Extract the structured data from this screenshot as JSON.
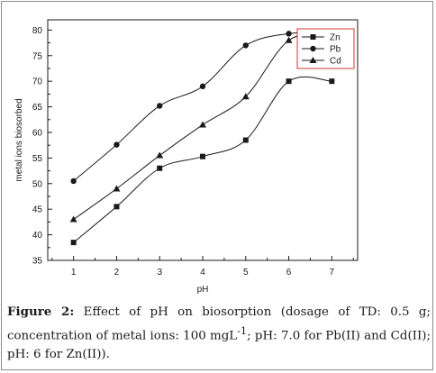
{
  "chart_data": {
    "type": "line",
    "xlabel": "pH",
    "ylabel": "metal ions biosorbed",
    "xlim": [
      0.4,
      7.6
    ],
    "ylim": [
      35,
      82
    ],
    "x_ticks": [
      1,
      2,
      3,
      4,
      5,
      6,
      7
    ],
    "y_ticks": [
      35,
      40,
      45,
      50,
      55,
      60,
      65,
      70,
      75,
      80
    ],
    "legend_position": "top-right",
    "grid": false,
    "series": [
      {
        "name": "Zn",
        "marker": "square",
        "color": "#1a1a1a",
        "x": [
          1,
          2,
          3,
          4,
          5,
          6,
          7
        ],
        "y": [
          38.5,
          45.5,
          53.0,
          55.3,
          58.5,
          70.0,
          70.0
        ]
      },
      {
        "name": "Pb",
        "marker": "circle",
        "color": "#1a1a1a",
        "x": [
          1,
          2,
          3,
          4,
          5,
          6,
          7
        ],
        "y": [
          50.5,
          57.6,
          65.2,
          69.0,
          77.0,
          79.3,
          79.5
        ]
      },
      {
        "name": "Cd",
        "marker": "triangle",
        "color": "#1a1a1a",
        "x": [
          1,
          2,
          3,
          4,
          5,
          6,
          7
        ],
        "y": [
          43.0,
          49.0,
          55.5,
          61.5,
          67.0,
          78.0,
          79.2
        ]
      }
    ]
  },
  "caption": {
    "label": "Figure 2:",
    "text": " Effect of pH on biosorption (dosage of TD: 0.5 g; concentration of metal ions: 100 mgL",
    "superscript": "-1",
    "text_after": "; pH: 7.0 for Pb(II) and Cd(II); pH: 6 for Zn(II))."
  },
  "colors": {
    "legend_border": "#e03030",
    "axis": "#1a1a1a",
    "text": "#1a1a1a"
  }
}
